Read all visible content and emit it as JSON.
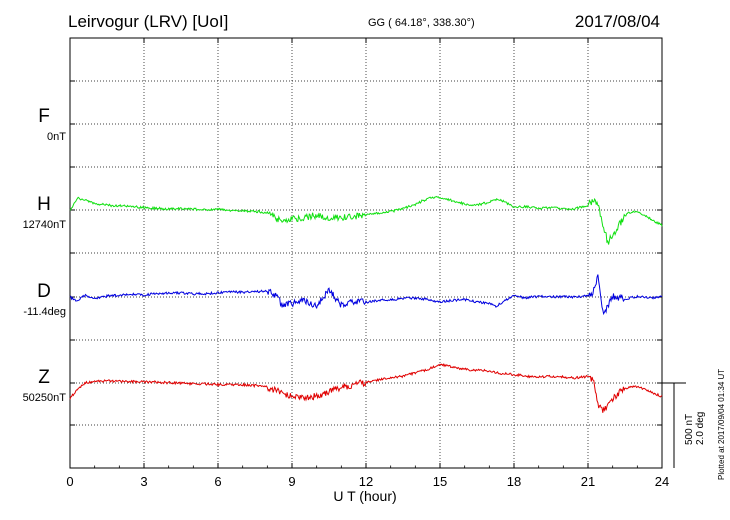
{
  "header": {
    "station": "Leirvogur (LRV)  [UoI]",
    "coords": "GG ( 64.18°, 338.30°)",
    "date": "2017/08/04"
  },
  "components": [
    {
      "letter": "F",
      "baseline": "0nT",
      "color": "#f0a000"
    },
    {
      "letter": "H",
      "baseline": "12740nT",
      "color": "#10e010"
    },
    {
      "letter": "D",
      "baseline": "-11.4deg",
      "color": "#0000e0"
    },
    {
      "letter": "Z",
      "baseline": "50250nT",
      "color": "#e00000"
    }
  ],
  "scale": {
    "line1": "500 nT",
    "line2": "2.0 deg"
  },
  "plotted": "Plotted at 2017/09/04 01:34 UT",
  "chart_data": {
    "type": "line",
    "xlabel": "U T (hour)",
    "xlim": [
      0,
      24
    ],
    "xticks": [
      "0",
      "3",
      "6",
      "9",
      "12",
      "15",
      "18",
      "21",
      "24"
    ],
    "grid": true,
    "series": [
      {
        "name": "H",
        "color": "#10e010",
        "x": [
          0,
          0.3,
          0.6,
          1,
          1.5,
          2,
          2.5,
          3,
          3.5,
          4,
          4.5,
          5,
          5.5,
          6,
          6.5,
          7,
          7.5,
          8,
          8.3,
          8.6,
          9,
          9.5,
          10,
          10.5,
          11,
          11.5,
          12,
          12.5,
          13,
          13.5,
          14,
          14.3,
          14.6,
          15,
          15.5,
          16,
          16.5,
          17,
          17.3,
          17.6,
          18,
          18.5,
          19,
          19.5,
          20,
          20.5,
          21,
          21.2,
          21.4,
          21.6,
          21.8,
          22,
          22.3,
          22.6,
          23,
          23.3,
          23.6,
          24
        ],
        "values": [
          0,
          70,
          60,
          40,
          28,
          25,
          20,
          15,
          10,
          5,
          8,
          5,
          0,
          5,
          -2,
          -4,
          -8,
          -15,
          -45,
          -70,
          -55,
          -45,
          -30,
          -50,
          -45,
          -40,
          -25,
          -20,
          -10,
          10,
          30,
          55,
          70,
          75,
          55,
          35,
          30,
          45,
          65,
          50,
          15,
          20,
          10,
          15,
          5,
          8,
          30,
          50,
          40,
          -80,
          -190,
          -150,
          -80,
          -15,
          -10,
          -30,
          -60,
          -90
        ]
      },
      {
        "name": "D",
        "color": "#0000e0",
        "x": [
          0,
          0.3,
          0.6,
          1,
          1.5,
          2,
          2.5,
          3,
          3.5,
          4,
          4.5,
          5,
          5.5,
          6,
          6.5,
          7,
          7.5,
          8,
          8.3,
          8.6,
          9,
          9.5,
          10,
          10.5,
          11,
          11.5,
          12,
          12.5,
          13,
          13.5,
          14,
          14.5,
          15,
          15.5,
          16,
          16.5,
          17,
          17.3,
          17.6,
          18,
          18.5,
          19,
          19.5,
          20,
          20.5,
          21,
          21.2,
          21.4,
          21.6,
          21.8,
          22,
          22.5,
          23,
          23.5,
          24
        ],
        "values": [
          0,
          -25,
          10,
          -10,
          5,
          10,
          15,
          12,
          20,
          22,
          25,
          18,
          20,
          25,
          30,
          28,
          32,
          35,
          15,
          -45,
          -40,
          -20,
          -50,
          45,
          -50,
          -30,
          -30,
          -20,
          -15,
          -10,
          -5,
          -15,
          -30,
          -20,
          -15,
          -30,
          -35,
          -55,
          -20,
          5,
          -5,
          5,
          0,
          3,
          0,
          5,
          20,
          120,
          -90,
          -60,
          5,
          -10,
          2,
          -5,
          0
        ]
      },
      {
        "name": "Z",
        "color": "#e00000",
        "x": [
          0,
          0.3,
          0.6,
          1,
          1.5,
          2,
          2.5,
          3,
          3.5,
          4,
          4.5,
          5,
          5.5,
          6,
          6.5,
          7,
          7.5,
          8,
          8.5,
          9,
          9.5,
          10,
          10.5,
          11,
          11.5,
          12,
          12.5,
          13,
          13.5,
          14,
          14.5,
          15,
          15.5,
          16,
          16.5,
          17,
          17.5,
          18,
          18.5,
          19,
          19.5,
          20,
          20.5,
          21,
          21.2,
          21.4,
          21.6,
          21.8,
          22,
          22.5,
          23,
          23.5,
          24
        ],
        "values": [
          -90,
          -40,
          0,
          10,
          12,
          10,
          8,
          8,
          5,
          2,
          0,
          -5,
          -5,
          -10,
          -8,
          -10,
          -15,
          -25,
          -55,
          -80,
          -90,
          -75,
          -50,
          -25,
          -10,
          5,
          20,
          30,
          40,
          60,
          80,
          110,
          95,
          80,
          75,
          70,
          55,
          50,
          40,
          35,
          40,
          35,
          30,
          40,
          20,
          -130,
          -170,
          -140,
          -90,
          -30,
          -20,
          -50,
          -80
        ]
      }
    ]
  }
}
